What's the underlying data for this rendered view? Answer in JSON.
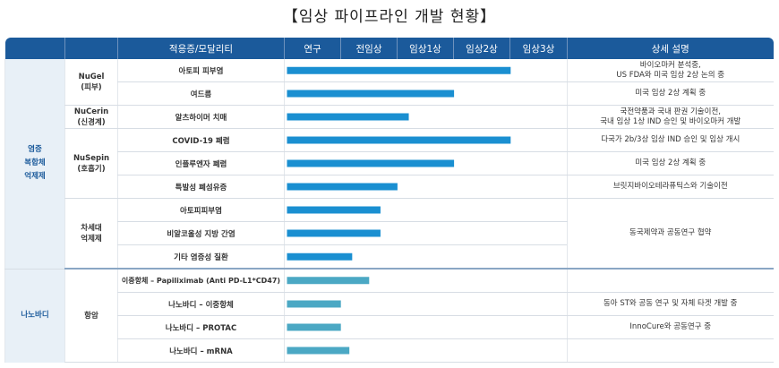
{
  "title": "【임상 파이프라인 개발 현황】",
  "header": {
    "indication": "적응증/모달리티",
    "stages": [
      "연구",
      "전임상",
      "임상1상",
      "임상2상",
      "임상3상"
    ],
    "details": "상세 설명"
  },
  "groups": [
    {
      "name": "염증\n복합체\n억제제"
    },
    {
      "name": "나노바디"
    }
  ],
  "subgroups": [
    {
      "name": "NuGel\n(피부)"
    },
    {
      "name": "NuCerin\n(신경계)"
    },
    {
      "name": "NuSepin\n(호흡기)"
    },
    {
      "name": "차세대\n억제제"
    },
    {
      "name": "항암"
    }
  ],
  "rows": [
    {
      "indication": "아토피 피부염",
      "detail": "바이오마커 분석중,\nUS FDA와 미국 임상 2상 논의 중"
    },
    {
      "indication": "여드름",
      "detail": "미국 임상 2상 계획 중"
    },
    {
      "indication": "알츠하이머 치매",
      "detail": "국전약품과 국내 판권 기술이전,\n국내 임상 1상 IND 승인 및 바이오마커 개발"
    },
    {
      "indication": "COVID-19 폐렴",
      "detail": "다국가 2b/3상 임상 IND 승인 및 임상 개시"
    },
    {
      "indication": "인플루엔자 폐렴",
      "detail": "미국 임상 2상 계획 중"
    },
    {
      "indication": "특발성 폐섬유증",
      "detail": "브릿지바이오테라퓨틱스와 기술이전"
    },
    {
      "indication": "아토피피부염",
      "detail": ""
    },
    {
      "indication": "비알코올성 지방 간염",
      "detail": ""
    },
    {
      "indication": "기타 염증성 질환",
      "detail": ""
    },
    {
      "indication": "이중항체 – Papiliximab (Anti PD-L1*CD47)",
      "detail": ""
    },
    {
      "indication": "나노바디 – 이중항체",
      "detail": ""
    },
    {
      "indication": "나노바디 – PROTAC",
      "detail": ""
    },
    {
      "indication": "나노바디 – mRNA",
      "detail": ""
    }
  ],
  "merged_details": {
    "next_gen": "동국제약과 공동연구 협약",
    "oncology_a": "동아 ST와 공동 연구 및 자체 타겟 개발 중",
    "oncology_b": "InnoCure와 공동연구 중"
  },
  "colors": {
    "header_bg": "#1b5a9b",
    "bar_blue": "#1a8fd1",
    "bar_teal": "#4ba8c4",
    "group_bg": "#e8f0f7"
  },
  "chart_data": {
    "type": "bar",
    "orientation": "horizontal",
    "title": "【임상 파이프라인 개발 현황】",
    "x_stages": [
      "연구",
      "전임상",
      "임상1상",
      "임상2상",
      "임상3상"
    ],
    "xlim": [
      0,
      5
    ],
    "categories": [
      "아토피 피부염",
      "여드름",
      "알츠하이머 치매",
      "COVID-19 폐렴",
      "인플루엔자 폐렴",
      "특발성 폐섬유증",
      "아토피피부염",
      "비알코올성 지방 간염",
      "기타 염증성 질환",
      "이중항체 – Papiliximab (Anti PD-L1*CD47)",
      "나노바디 – 이중항체",
      "나노바디 – PROTAC",
      "나노바디 – mRNA"
    ],
    "values": [
      4.0,
      3.0,
      2.2,
      4.0,
      3.0,
      2.0,
      1.7,
      1.7,
      1.2,
      1.5,
      1.0,
      1.0,
      1.15
    ],
    "bar_colors": [
      "#1a8fd1",
      "#1a8fd1",
      "#1a8fd1",
      "#1a8fd1",
      "#1a8fd1",
      "#1a8fd1",
      "#1a8fd1",
      "#1a8fd1",
      "#1a8fd1",
      "#4ba8c4",
      "#4ba8c4",
      "#4ba8c4",
      "#4ba8c4"
    ],
    "grid": true
  }
}
